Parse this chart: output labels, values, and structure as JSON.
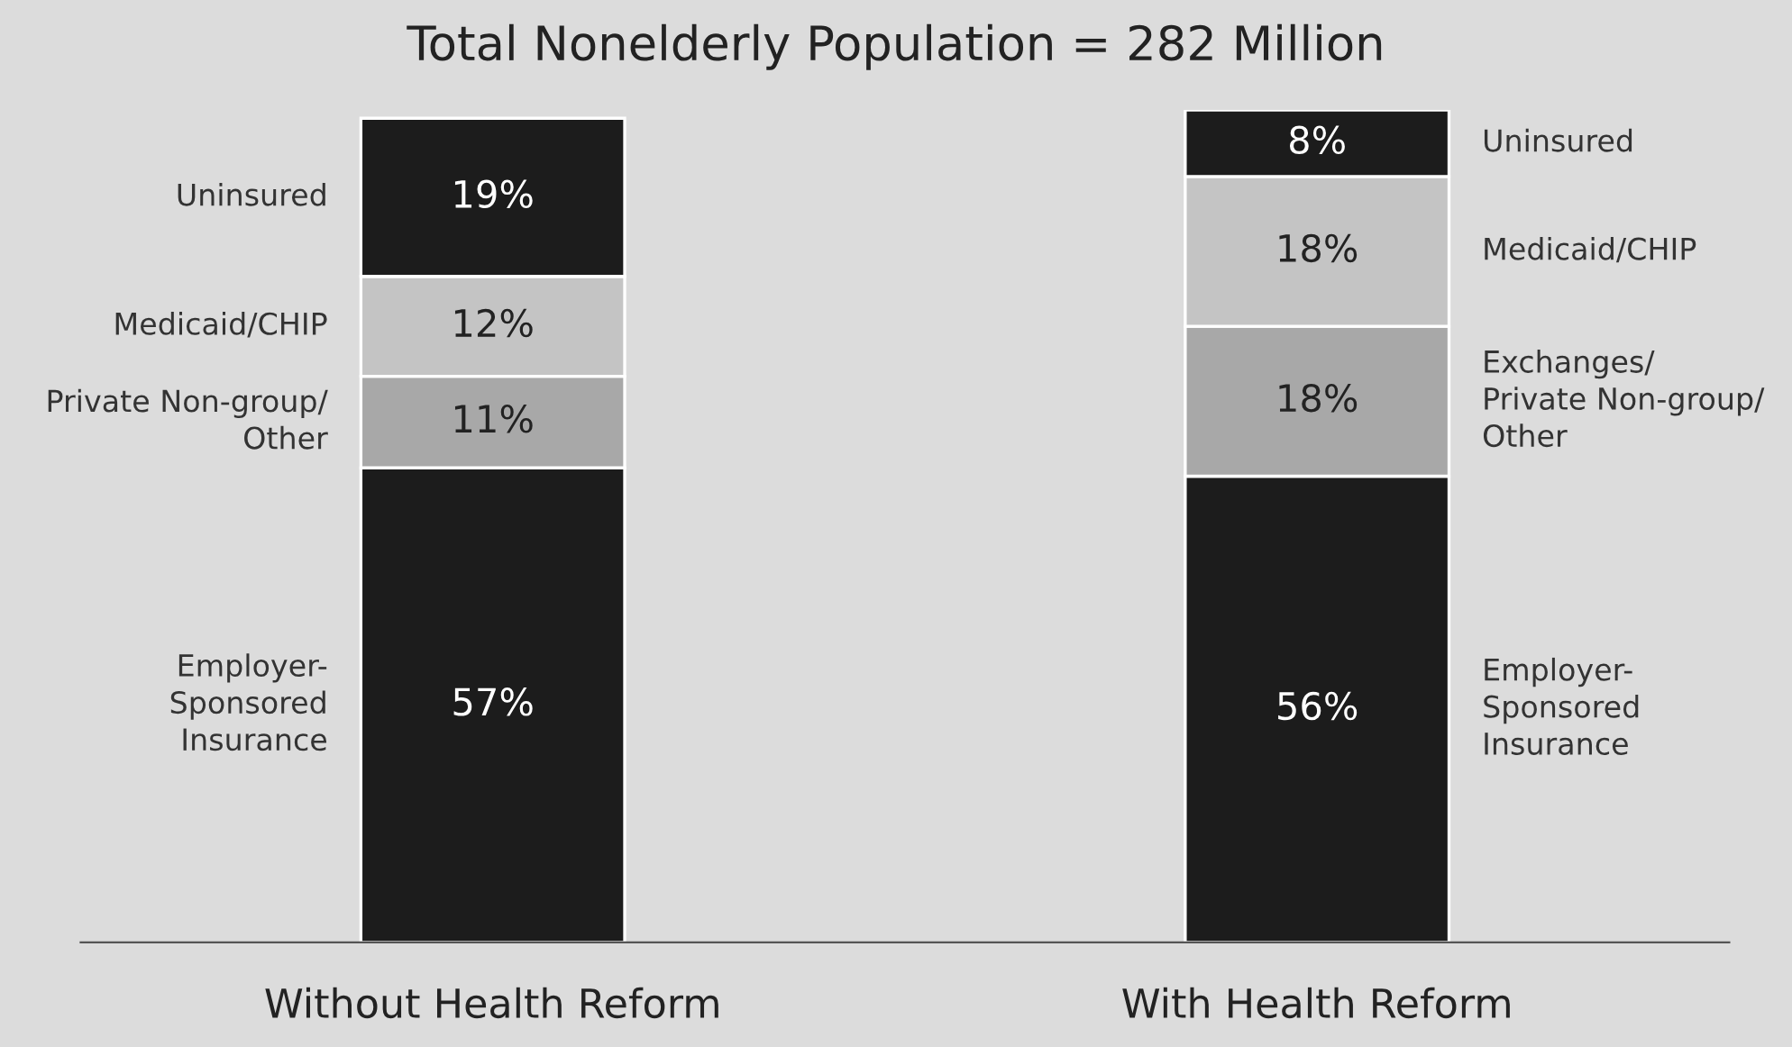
{
  "chart_data": {
    "type": "bar",
    "stacked": true,
    "title": "Total Nonelderly Population = 282 Million",
    "categories": [
      "Without Health Reform",
      "With Health Reform"
    ],
    "series": [
      {
        "color": "#1c1c1c",
        "values": [
          57,
          56
        ],
        "value_labels": [
          "57%",
          "56%"
        ]
      },
      {
        "color": "#a8a8a8",
        "values": [
          11,
          18
        ],
        "value_labels": [
          "11%",
          "18%"
        ]
      },
      {
        "color": "#c4c4c4",
        "values": [
          12,
          18
        ],
        "value_labels": [
          "12%",
          "18%"
        ]
      },
      {
        "color": "#1c1c1c",
        "values": [
          19,
          8
        ],
        "value_labels": [
          "19%",
          "8%"
        ]
      }
    ],
    "annotations": [
      "Employer-\nSponsored\nInsurance",
      "Private Non-group/\nOther",
      "Medicaid/CHIP",
      "Uninsured",
      "Employer-\nSponsored\nInsurance",
      "Exchanges/\nPrivate Non-group/\nOther",
      "Medicaid/CHIP",
      "Uninsured"
    ],
    "legend": false,
    "grid": false
  }
}
